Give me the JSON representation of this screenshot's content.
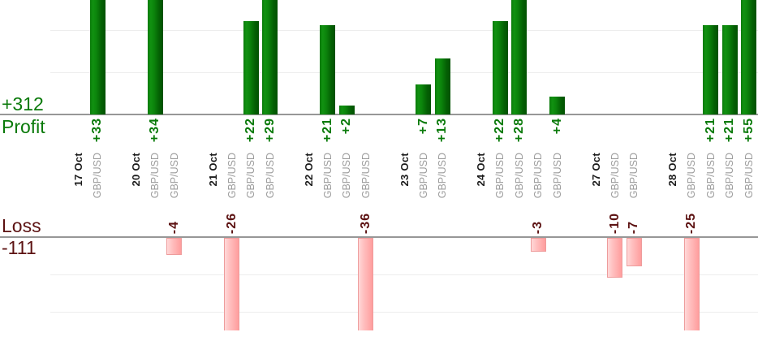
{
  "summary": {
    "profit_total": "+312",
    "profit_axis_label": "Profit",
    "loss_axis_label": "Loss",
    "loss_total": "-111"
  },
  "colors": {
    "profit_text": "#0a7a0a",
    "loss_text": "#5c1212",
    "date_text": "#1c1c1c",
    "symbol_text": "#9c9c9c",
    "axis_line": "#979797",
    "gridline": "#ededed",
    "profit_bar_light": "#119111",
    "profit_bar_dark": "#025102",
    "profit_bar_edge": "#0a7a0a",
    "loss_bar_light": "#ffd9d9",
    "loss_bar_dark": "#ff9d9d",
    "loss_bar_border": "#ee9c9c"
  },
  "chart_data": {
    "type": "bar",
    "description": "Per-trade profit and loss in points, grouped by trading day; profits plotted above the Profit axis, losses below the Loss axis",
    "profit_total": 312,
    "loss_total": -111,
    "gridline_step": 10,
    "profit_visible_axis_max": 27,
    "loss_visible_axis_min": -25,
    "legend_position": "none",
    "grid": "horizontal",
    "groups": [
      {
        "date": "17 Oct",
        "trades": [
          {
            "symbol": "GBP/USD",
            "value": 33,
            "label": "+33"
          }
        ]
      },
      {
        "date": "20 Oct",
        "trades": [
          {
            "symbol": "GBP/USD",
            "value": 34,
            "label": "+34"
          },
          {
            "symbol": "GBP/USD",
            "value": -4,
            "label": "-4"
          }
        ]
      },
      {
        "date": "21 Oct",
        "trades": [
          {
            "symbol": "GBP/USD",
            "value": -26,
            "label": "-26"
          },
          {
            "symbol": "GBP/USD",
            "value": 22,
            "label": "+22"
          },
          {
            "symbol": "GBP/USD",
            "value": 29,
            "label": "+29"
          }
        ]
      },
      {
        "date": "22 Oct",
        "trades": [
          {
            "symbol": "GBP/USD",
            "value": 21,
            "label": "+21"
          },
          {
            "symbol": "GBP/USD",
            "value": 2,
            "label": "+2"
          },
          {
            "symbol": "GBP/USD",
            "value": -36,
            "label": "-36"
          }
        ]
      },
      {
        "date": "23 Oct",
        "trades": [
          {
            "symbol": "GBP/USD",
            "value": 7,
            "label": "+7"
          },
          {
            "symbol": "GBP/USD",
            "value": 13,
            "label": "+13"
          }
        ]
      },
      {
        "date": "24 Oct",
        "trades": [
          {
            "symbol": "GBP/USD",
            "value": 22,
            "label": "+22"
          },
          {
            "symbol": "GBP/USD",
            "value": 28,
            "label": "+28"
          },
          {
            "symbol": "GBP/USD",
            "value": -3,
            "label": "-3"
          },
          {
            "symbol": "GBP/USD",
            "value": 4,
            "label": "+4"
          }
        ]
      },
      {
        "date": "27 Oct",
        "trades": [
          {
            "symbol": "GBP/USD",
            "value": -10,
            "label": "-10"
          },
          {
            "symbol": "GBP/USD",
            "value": -7,
            "label": "-7"
          }
        ]
      },
      {
        "date": "28 Oct",
        "trades": [
          {
            "symbol": "GBP/USD",
            "value": -25,
            "label": "-25"
          },
          {
            "symbol": "GBP/USD",
            "value": 21,
            "label": "+21"
          },
          {
            "symbol": "GBP/USD",
            "value": 21,
            "label": "+21"
          },
          {
            "symbol": "GBP/USD",
            "value": 55,
            "label": "+55"
          }
        ]
      }
    ]
  }
}
